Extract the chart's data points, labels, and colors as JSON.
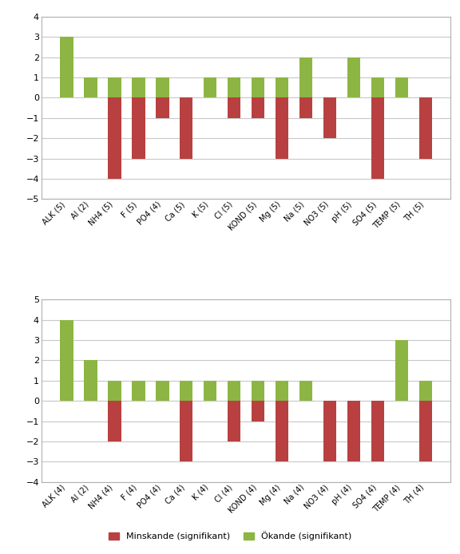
{
  "chart1": {
    "categories": [
      "ALK (5)",
      "Al (2)",
      "NH4 (5)",
      "F (5)",
      "PO4 (4)",
      "Ca (5)",
      "K (5)",
      "Cl (5)",
      "KOND (5)",
      "Mg (5)",
      "Na (5)",
      "NO3 (5)",
      "pH (5)",
      "SO4 (5)",
      "TEMP (5)",
      "TH (5)"
    ],
    "increasing": [
      3,
      1,
      1,
      1,
      1,
      0,
      1,
      1,
      1,
      1,
      2,
      0,
      2,
      1,
      1,
      0
    ],
    "decreasing": [
      0,
      0,
      -4,
      -3,
      -1,
      -3,
      0,
      -1,
      -1,
      -3,
      -1,
      -2,
      0,
      -4,
      0,
      -3
    ],
    "ylim": [
      -5,
      4
    ],
    "yticks": [
      -5,
      -4,
      -3,
      -2,
      -1,
      0,
      1,
      2,
      3,
      4
    ]
  },
  "chart2": {
    "categories": [
      "ALK (4)",
      "Al (2)",
      "NH4 (4)",
      "F (4)",
      "PO4 (4)",
      "Ca (4)",
      "K (4)",
      "Cl (4)",
      "KOND (4)",
      "Mg (4)",
      "Na (4)",
      "NO3 (4)",
      "pH (4)",
      "SO4 (4)",
      "TEMP (4)",
      "TH (4)"
    ],
    "increasing": [
      4,
      2,
      1,
      1,
      1,
      1,
      1,
      1,
      1,
      1,
      1,
      0,
      0,
      0,
      3,
      1
    ],
    "decreasing": [
      0,
      0,
      -2,
      0,
      0,
      -3,
      0,
      -2,
      -1,
      -3,
      0,
      -3,
      -3,
      -3,
      0,
      -3
    ],
    "ylim": [
      -4,
      5
    ],
    "yticks": [
      -4,
      -3,
      -2,
      -1,
      0,
      1,
      2,
      3,
      4,
      5
    ]
  },
  "color_increasing": "#8db543",
  "color_decreasing": "#b94040",
  "legend_minskande": "Minskande (signifikant)",
  "legend_okande": "Ökande (signifikant)",
  "background_color": "#ffffff",
  "border_color": "#b0b0b0",
  "grid_color": "#c8c8c8",
  "bar_width": 0.55
}
